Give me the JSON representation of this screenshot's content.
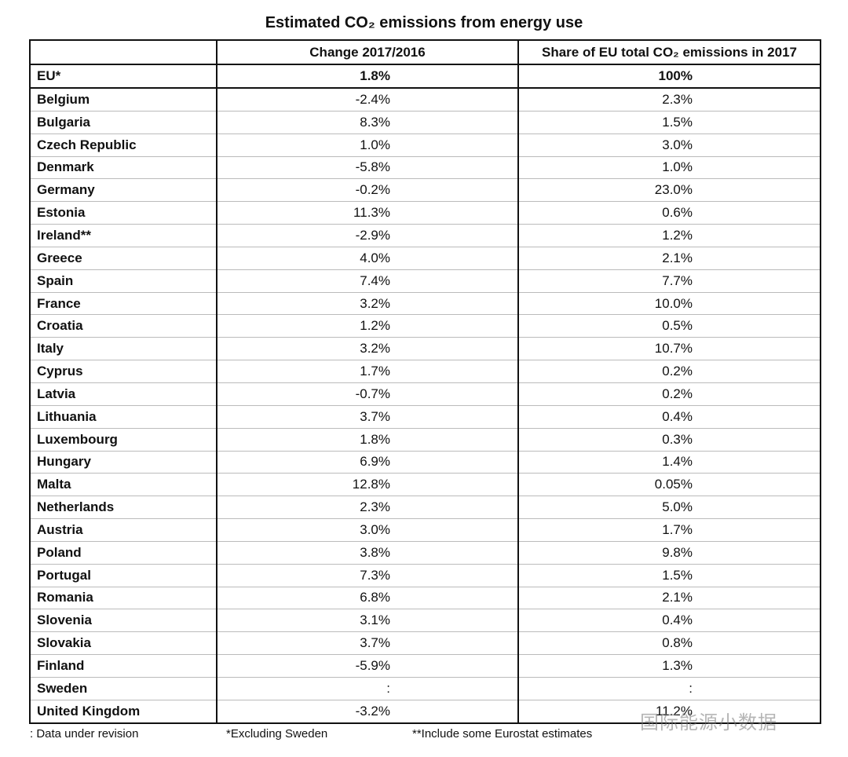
{
  "title": "Estimated CO₂ emissions from energy use",
  "table": {
    "header": [
      "Change 2017/2016",
      "Share of EU total CO₂ emissions in 2017"
    ],
    "rows": [
      [
        "EU*",
        "1.8%",
        "100%"
      ],
      [
        "Belgium",
        "-2.4%",
        "2.3%"
      ],
      [
        "Bulgaria",
        "8.3%",
        "1.5%"
      ],
      [
        "Czech Republic",
        "1.0%",
        "3.0%"
      ],
      [
        "Denmark",
        "-5.8%",
        "1.0%"
      ],
      [
        "Germany",
        "-0.2%",
        "23.0%"
      ],
      [
        "Estonia",
        "11.3%",
        "0.6%"
      ],
      [
        "Ireland**",
        "-2.9%",
        "1.2%"
      ],
      [
        "Greece",
        "4.0%",
        "2.1%"
      ],
      [
        "Spain",
        "7.4%",
        "7.7%"
      ],
      [
        "France",
        "3.2%",
        "10.0%"
      ],
      [
        "Croatia",
        "1.2%",
        "0.5%"
      ],
      [
        "Italy",
        "3.2%",
        "10.7%"
      ],
      [
        "Cyprus",
        "1.7%",
        "0.2%"
      ],
      [
        "Latvia",
        "-0.7%",
        "0.2%"
      ],
      [
        "Lithuania",
        "3.7%",
        "0.4%"
      ],
      [
        "Luxembourg",
        "1.8%",
        "0.3%"
      ],
      [
        "Hungary",
        "6.9%",
        "1.4%"
      ],
      [
        "Malta",
        "12.8%",
        "0.05%"
      ],
      [
        "Netherlands",
        "2.3%",
        "5.0%"
      ],
      [
        "Austria",
        "3.0%",
        "1.7%"
      ],
      [
        "Poland",
        "3.8%",
        "9.8%"
      ],
      [
        "Portugal",
        "7.3%",
        "1.5%"
      ],
      [
        "Romania",
        "6.8%",
        "2.1%"
      ],
      [
        "Slovenia",
        "3.1%",
        "0.4%"
      ],
      [
        "Slovakia",
        "3.7%",
        "0.8%"
      ],
      [
        "Finland",
        "-5.9%",
        "1.3%"
      ],
      [
        "Sweden",
        ":",
        ":"
      ],
      [
        "United Kingdom",
        "-3.2%",
        "11.2%"
      ]
    ]
  },
  "footnotes": [
    ": Data under revision",
    "*Excluding Sweden",
    "**Include some Eurostat estimates"
  ],
  "watermark": "国际能源小数据"
}
